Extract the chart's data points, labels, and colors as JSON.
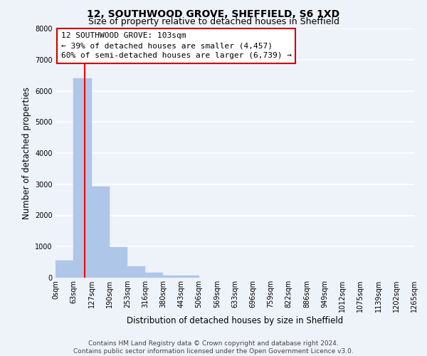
{
  "title": "12, SOUTHWOOD GROVE, SHEFFIELD, S6 1XD",
  "subtitle": "Size of property relative to detached houses in Sheffield",
  "xlabel": "Distribution of detached houses by size in Sheffield",
  "ylabel": "Number of detached properties",
  "bar_edges": [
    0,
    63,
    127,
    190,
    253,
    316,
    380,
    443,
    506,
    569,
    633,
    696,
    759,
    822,
    886,
    949,
    1012,
    1075,
    1139,
    1202,
    1265
  ],
  "bar_heights": [
    560,
    6400,
    2920,
    980,
    370,
    170,
    80,
    60,
    0,
    0,
    0,
    0,
    0,
    0,
    0,
    0,
    0,
    0,
    0,
    0
  ],
  "bar_color": "#aec6e8",
  "bar_edgecolor": "#aec6e8",
  "vline_x": 103,
  "vline_color": "red",
  "ylim": [
    0,
    8000
  ],
  "yticks": [
    0,
    1000,
    2000,
    3000,
    4000,
    5000,
    6000,
    7000,
    8000
  ],
  "xtick_labels": [
    "0sqm",
    "63sqm",
    "127sqm",
    "190sqm",
    "253sqm",
    "316sqm",
    "380sqm",
    "443sqm",
    "506sqm",
    "569sqm",
    "633sqm",
    "696sqm",
    "759sqm",
    "822sqm",
    "886sqm",
    "949sqm",
    "1012sqm",
    "1075sqm",
    "1139sqm",
    "1202sqm",
    "1265sqm"
  ],
  "annotation_line1": "12 SOUTHWOOD GROVE: 103sqm",
  "annotation_line2": "← 39% of detached houses are smaller (4,457)",
  "annotation_line3": "60% of semi-detached houses are larger (6,739) →",
  "footer_line1": "Contains HM Land Registry data © Crown copyright and database right 2024.",
  "footer_line2": "Contains public sector information licensed under the Open Government Licence v3.0.",
  "bg_color": "#eef2f9",
  "grid_color": "white",
  "title_fontsize": 10,
  "subtitle_fontsize": 9,
  "axis_label_fontsize": 8.5,
  "tick_fontsize": 7,
  "annotation_fontsize": 8,
  "footer_fontsize": 6.5
}
